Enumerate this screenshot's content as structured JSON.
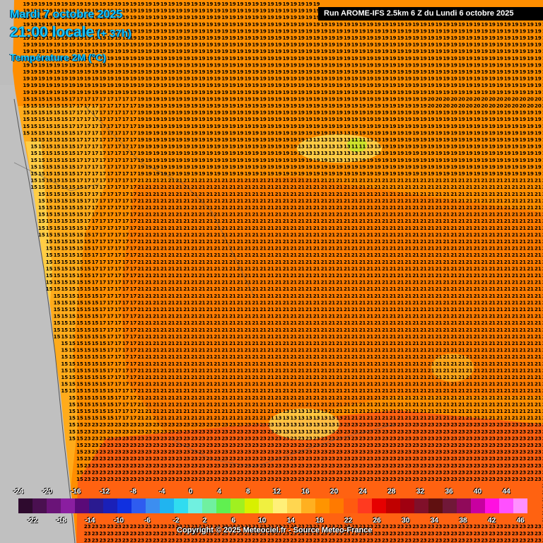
{
  "header": {
    "date": "Mardi 7 octobre 2025",
    "time": "21:00 locale",
    "offset": "(+ 37h)",
    "parameter": "Température 2M (°C)"
  },
  "run_banner": "Run AROME-IFS 2.5km 6 Z du Lundi 6 octobre 2025",
  "copyright": "Copyright © 2025 Meteociel.fr - Source Meteo-France",
  "legend": {
    "top_labels": [
      "-24",
      "-20",
      "-16",
      "-12",
      "-8",
      "-4",
      "0",
      "4",
      "8",
      "12",
      "16",
      "20",
      "24",
      "28",
      "32",
      "36",
      "40",
      "44"
    ],
    "bottom_labels": [
      "-22",
      "-18",
      "-14",
      "-10",
      "-6",
      "-2",
      "2",
      "6",
      "10",
      "14",
      "18",
      "22",
      "26",
      "30",
      "34",
      "38",
      "42",
      "46"
    ],
    "colors": [
      "#2e0a2e",
      "#4a1050",
      "#6a1478",
      "#8a1ea0",
      "#5a0a78",
      "#2a1a90",
      "#1a20b8",
      "#1030e0",
      "#2e5cf0",
      "#3c8ef0",
      "#20b4f0",
      "#30dcf0",
      "#70f0e0",
      "#70f0a0",
      "#60f050",
      "#a0f020",
      "#d8f000",
      "#f0f040",
      "#fff078",
      "#ffd650",
      "#ffb020",
      "#ff9400",
      "#ff7a00",
      "#ff5a10",
      "#ff3a20",
      "#e60000",
      "#c00000",
      "#a00010",
      "#80102a",
      "#601010",
      "#701838",
      "#900a5a",
      "#c800a0",
      "#ff10e0",
      "#ff50ff",
      "#ff90ff"
    ]
  },
  "map_data": {
    "colors": {
      "c12": "#ffd650",
      "c14": "#ffb020",
      "c16": "#ff9c00",
      "c18": "#ff8a00",
      "c20": "#ff7200",
      "c22": "#ff5a14",
      "c24": "#ff4020",
      "land": "#c0c0c0"
    },
    "zones": [
      {
        "name": "north-strip",
        "value": 17
      },
      {
        "name": "coast-band",
        "value": 15
      },
      {
        "name": "landes-west",
        "value": 19
      },
      {
        "name": "interior",
        "value": 21
      },
      {
        "name": "south-warm",
        "value": 23
      },
      {
        "name": "cool-spot",
        "value": 11
      }
    ]
  }
}
